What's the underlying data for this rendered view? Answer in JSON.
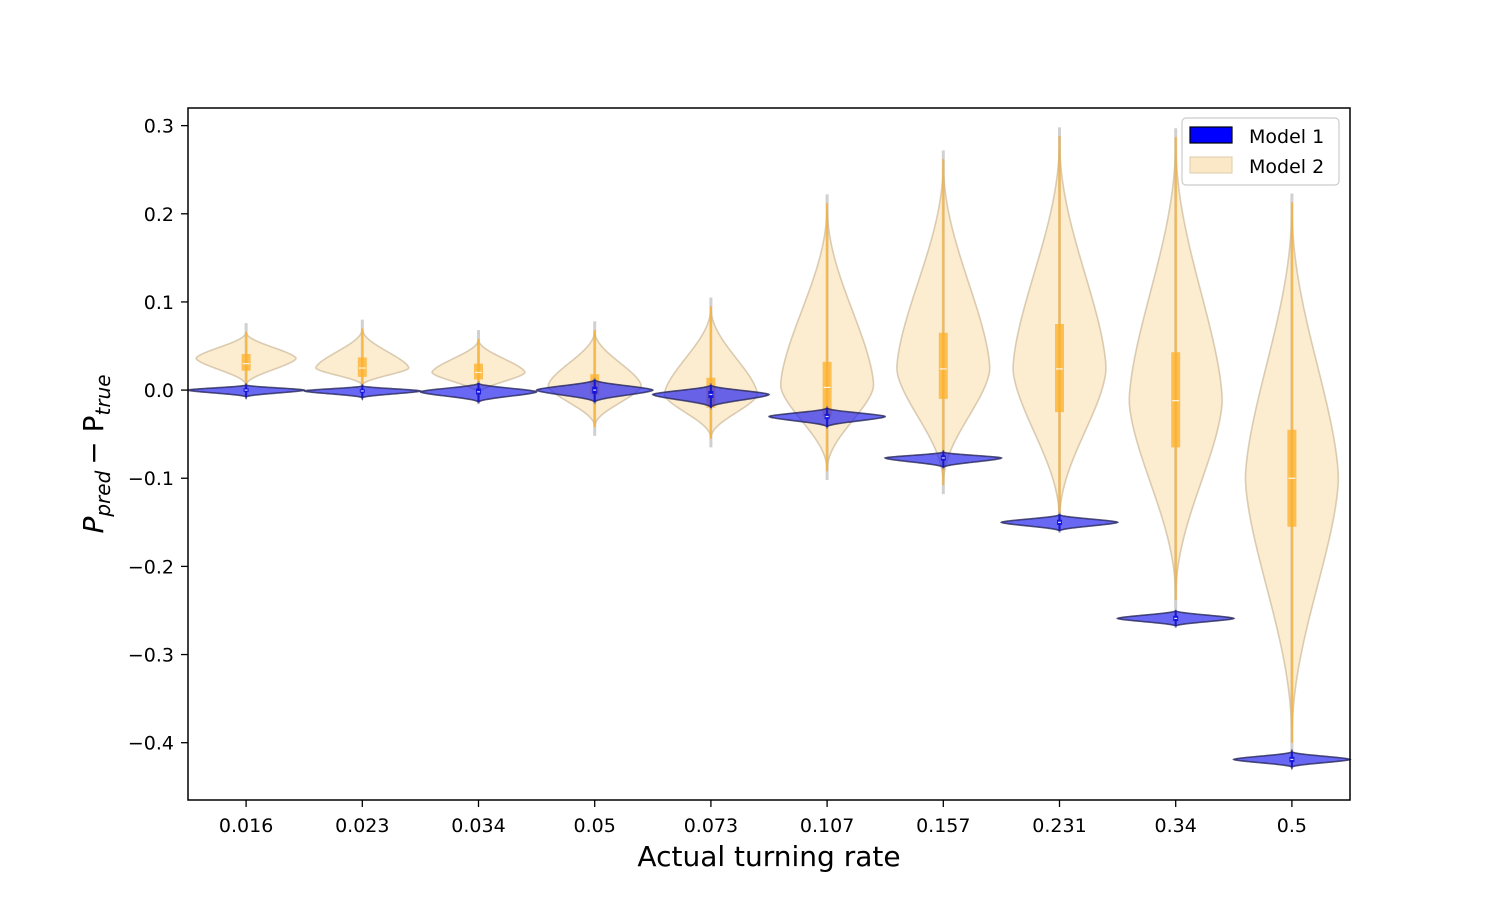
{
  "chart_data": {
    "type": "violin",
    "xlabel": "Actual turning rate",
    "ylabel_main": "P",
    "ylabel_sub1": "pred",
    "ylabel_minus": "− P",
    "ylabel_sub2": "true",
    "categories": [
      "0.016",
      "0.023",
      "0.034",
      "0.05",
      "0.073",
      "0.107",
      "0.157",
      "0.231",
      "0.34",
      "0.5"
    ],
    "ylim": [
      -0.465,
      0.32
    ],
    "yticks": [
      {
        "value": 0.3,
        "label": "0.3"
      },
      {
        "value": 0.2,
        "label": "0.2"
      },
      {
        "value": 0.1,
        "label": "0.1"
      },
      {
        "value": 0.0,
        "label": "0.0"
      },
      {
        "value": -0.1,
        "label": "−0.1"
      },
      {
        "value": -0.2,
        "label": "−0.2"
      },
      {
        "value": -0.3,
        "label": "−0.3"
      },
      {
        "value": -0.4,
        "label": "−0.4"
      }
    ],
    "legend": {
      "position": "top-right"
    },
    "grid": false,
    "series": [
      {
        "name": "Model 1",
        "color": "#0000ff",
        "violins": [
          {
            "min": -0.008,
            "q1": -0.002,
            "median": 0.0,
            "q3": 0.002,
            "max": 0.006,
            "mode": 0.0,
            "halfwidth": 0.5
          },
          {
            "min": -0.009,
            "q1": -0.003,
            "median": -0.001,
            "q3": 0.001,
            "max": 0.005,
            "mode": -0.001,
            "halfwidth": 0.5
          },
          {
            "min": -0.014,
            "q1": -0.005,
            "median": -0.002,
            "q3": 0.002,
            "max": 0.008,
            "mode": -0.002,
            "halfwidth": 0.5
          },
          {
            "min": -0.014,
            "q1": -0.004,
            "median": 0.0,
            "q3": 0.004,
            "max": 0.012,
            "mode": 0.0,
            "halfwidth": 0.5
          },
          {
            "min": -0.02,
            "q1": -0.009,
            "median": -0.005,
            "q3": -0.001,
            "max": 0.006,
            "mode": -0.005,
            "halfwidth": 0.5
          },
          {
            "min": -0.042,
            "q1": -0.033,
            "median": -0.03,
            "q3": -0.027,
            "max": -0.02,
            "mode": -0.03,
            "halfwidth": 0.5
          },
          {
            "min": -0.088,
            "q1": -0.08,
            "median": -0.077,
            "q3": -0.074,
            "max": -0.07,
            "mode": -0.077,
            "halfwidth": 0.5
          },
          {
            "min": -0.16,
            "q1": -0.153,
            "median": -0.15,
            "q3": -0.147,
            "max": -0.141,
            "mode": -0.15,
            "halfwidth": 0.5
          },
          {
            "min": -0.268,
            "q1": -0.262,
            "median": -0.259,
            "q3": -0.256,
            "max": -0.25,
            "mode": -0.259,
            "halfwidth": 0.5
          },
          {
            "min": -0.428,
            "q1": -0.422,
            "median": -0.419,
            "q3": -0.416,
            "max": -0.41,
            "mode": -0.419,
            "halfwidth": 0.5
          }
        ]
      },
      {
        "name": "Model 2",
        "color": "#ffa500",
        "violins": [
          {
            "min": 0.005,
            "q1": 0.022,
            "median": 0.03,
            "q3": 0.041,
            "max": 0.066,
            "mode": 0.036,
            "halfwidth": 0.43
          },
          {
            "min": 0.005,
            "q1": 0.015,
            "median": 0.025,
            "q3": 0.037,
            "max": 0.07,
            "mode": 0.025,
            "halfwidth": 0.4
          },
          {
            "min": -0.005,
            "q1": 0.012,
            "median": 0.02,
            "q3": 0.03,
            "max": 0.058,
            "mode": 0.02,
            "halfwidth": 0.4
          },
          {
            "min": -0.042,
            "q1": -0.005,
            "median": 0.005,
            "q3": 0.018,
            "max": 0.068,
            "mode": 0.005,
            "halfwidth": 0.4
          },
          {
            "min": -0.055,
            "q1": -0.02,
            "median": -0.005,
            "q3": 0.014,
            "max": 0.095,
            "mode": -0.005,
            "halfwidth": 0.4
          },
          {
            "min": -0.092,
            "q1": -0.03,
            "median": 0.003,
            "q3": 0.032,
            "max": 0.212,
            "mode": 0.005,
            "halfwidth": 0.4
          },
          {
            "min": -0.108,
            "q1": -0.01,
            "median": 0.024,
            "q3": 0.065,
            "max": 0.262,
            "mode": 0.024,
            "halfwidth": 0.4
          },
          {
            "min": -0.15,
            "q1": -0.025,
            "median": 0.024,
            "q3": 0.075,
            "max": 0.288,
            "mode": 0.024,
            "halfwidth": 0.4
          },
          {
            "min": -0.238,
            "q1": -0.065,
            "median": -0.012,
            "q3": 0.043,
            "max": 0.287,
            "mode": -0.012,
            "halfwidth": 0.4
          },
          {
            "min": -0.4,
            "q1": -0.155,
            "median": -0.1,
            "q3": -0.045,
            "max": 0.213,
            "mode": -0.1,
            "halfwidth": 0.4
          }
        ]
      }
    ]
  }
}
